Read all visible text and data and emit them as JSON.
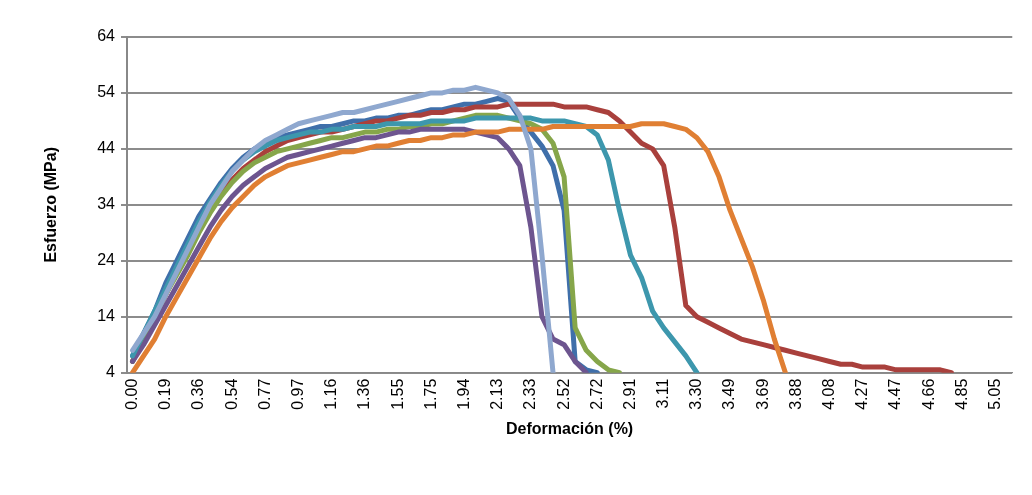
{
  "chart_data": {
    "type": "line",
    "xlabel": "Deformación (%)",
    "ylabel": "Esfuerzo (MPa)",
    "categories": [
      "0.00",
      null,
      null,
      "0.19",
      null,
      null,
      "0.36",
      null,
      null,
      "0.54",
      null,
      null,
      "0.77",
      null,
      null,
      "0.97",
      null,
      null,
      "1.16",
      null,
      null,
      "1.36",
      null,
      null,
      "1.55",
      null,
      null,
      "1.75",
      null,
      null,
      "1.94",
      null,
      null,
      "2.13",
      null,
      null,
      "2.33",
      null,
      null,
      "2.52",
      null,
      null,
      "2.72",
      null,
      null,
      "2.91",
      null,
      null,
      "3.11",
      null,
      null,
      "3.30",
      null,
      null,
      "3.49",
      null,
      null,
      "3.69",
      null,
      null,
      "3.88",
      null,
      null,
      "4.08",
      null,
      null,
      "4.27",
      null,
      null,
      "4.47",
      null,
      null,
      "4.66",
      null,
      null,
      "4.85",
      null,
      null,
      "5.05",
      null
    ],
    "ylim": [
      4,
      64
    ],
    "yticks": [
      4,
      14,
      24,
      34,
      44,
      54,
      64
    ],
    "grid": "y",
    "legend": false,
    "marker": "none",
    "line_style": "solid",
    "series": [
      {
        "color": "#3f6faa",
        "values": [
          7,
          11,
          15,
          20,
          24,
          28,
          32,
          35,
          38,
          40.5,
          42.5,
          44,
          45,
          46,
          46.5,
          47,
          47.5,
          48,
          48,
          48.5,
          49,
          49,
          49.5,
          49.5,
          50,
          50,
          50.5,
          51,
          51,
          51.5,
          52,
          52,
          52.5,
          53,
          52.5,
          49.5,
          47,
          44.5,
          41,
          33,
          6,
          4.5,
          4,
          null,
          null,
          null,
          null,
          null,
          null,
          null,
          null,
          null,
          null,
          null,
          null,
          null,
          null,
          null,
          null,
          null,
          null,
          null,
          null,
          null,
          null,
          null,
          null,
          null,
          null,
          null,
          null,
          null,
          null,
          null,
          null,
          null,
          null,
          null,
          null,
          null
        ]
      },
      {
        "color": "#a9403c",
        "values": [
          6,
          10,
          14,
          18,
          22,
          26,
          29.5,
          33,
          36,
          38.5,
          40.5,
          42,
          43.5,
          44.5,
          45.5,
          46,
          46.5,
          47,
          47,
          47.5,
          48,
          48.5,
          49,
          49,
          49.5,
          50,
          50,
          50.5,
          50.5,
          51,
          51,
          51.5,
          51.5,
          51.5,
          52,
          52,
          52,
          52,
          52,
          51.5,
          51.5,
          51.5,
          51,
          50.5,
          49,
          47,
          45,
          44,
          41,
          30,
          16,
          14,
          13,
          12,
          11,
          10,
          9.5,
          9,
          8.5,
          8,
          7.5,
          7,
          6.5,
          6,
          5.5,
          5.5,
          5,
          5,
          5,
          4.5,
          4.5,
          4.5,
          4.5,
          4.5,
          4,
          null,
          null,
          null,
          null,
          null
        ]
      },
      {
        "color": "#86a64a",
        "values": [
          6,
          10,
          14,
          18,
          21.5,
          25,
          29,
          32.5,
          35.5,
          38,
          40,
          41.5,
          42.5,
          43.5,
          44,
          44.5,
          45,
          45.5,
          46,
          46,
          46.5,
          47,
          47,
          47.5,
          47.5,
          48,
          48,
          48.5,
          48.5,
          49,
          49.5,
          50,
          50,
          50,
          49.5,
          49,
          48.5,
          47.5,
          45,
          39,
          12,
          8,
          6,
          4.5,
          4,
          null,
          null,
          null,
          null,
          null,
          null,
          null,
          null,
          null,
          null,
          null,
          null,
          null,
          null,
          null,
          null,
          null,
          null,
          null,
          null,
          null,
          null,
          null,
          null,
          null,
          null,
          null,
          null,
          null,
          null,
          null,
          null,
          null,
          null,
          null
        ]
      },
      {
        "color": "#6d558f",
        "values": [
          6,
          9,
          12.5,
          16,
          19.5,
          23,
          26.5,
          30,
          33,
          35.5,
          37.5,
          39,
          40.5,
          41.5,
          42.5,
          43,
          43.5,
          44,
          44.5,
          45,
          45.5,
          46,
          46,
          46.5,
          47,
          47,
          47.5,
          47.5,
          47.5,
          47.5,
          47.5,
          47,
          46.5,
          46,
          44,
          41,
          30,
          14,
          10,
          9,
          6,
          4,
          null,
          null,
          null,
          null,
          null,
          null,
          null,
          null,
          null,
          null,
          null,
          null,
          null,
          null,
          null,
          null,
          null,
          null,
          null,
          null,
          null,
          null,
          null,
          null,
          null,
          null,
          null,
          null,
          null,
          null,
          null,
          null,
          null,
          null,
          null,
          null,
          null,
          null
        ]
      },
      {
        "color": "#3d97ad",
        "values": [
          7,
          11,
          15,
          19,
          23,
          27,
          31,
          34.5,
          37.5,
          40,
          42,
          43.5,
          44.5,
          45.5,
          46,
          46.5,
          47,
          47,
          47.5,
          47.5,
          48,
          48,
          48,
          48.5,
          48.5,
          48.5,
          48.5,
          49,
          49,
          49,
          49,
          49.5,
          49.5,
          49.5,
          49.5,
          49.5,
          49.5,
          49,
          49,
          49,
          48.5,
          48,
          46.5,
          42,
          33,
          25,
          21,
          15,
          12,
          9.5,
          7,
          4,
          null,
          null,
          null,
          null,
          null,
          null,
          null,
          null,
          null,
          null,
          null,
          null,
          null,
          null,
          null,
          null,
          null,
          null,
          null,
          null,
          null,
          null,
          null,
          null,
          null,
          null,
          null,
          null
        ]
      },
      {
        "color": "#e07f33",
        "values": [
          4,
          7,
          10,
          14,
          17.5,
          21,
          24.5,
          28,
          31,
          33.5,
          35.5,
          37.5,
          39,
          40,
          41,
          41.5,
          42,
          42.5,
          43,
          43.5,
          43.5,
          44,
          44.5,
          44.5,
          45,
          45.5,
          45.5,
          46,
          46,
          46.5,
          46.5,
          47,
          47,
          47,
          47.5,
          47.5,
          47.5,
          47.5,
          48,
          48,
          48,
          48,
          48,
          48,
          48,
          48,
          48.5,
          48.5,
          48.5,
          48,
          47.5,
          46,
          43.5,
          39,
          33,
          28,
          23,
          17,
          10,
          4,
          null,
          null,
          null,
          null,
          null,
          null,
          null,
          null,
          null,
          null,
          null,
          null,
          null,
          null,
          null,
          null,
          null,
          null,
          null,
          null
        ]
      },
      {
        "color": "#8fa8cf",
        "values": [
          8,
          11,
          14,
          18,
          22,
          26,
          30,
          34,
          37,
          40,
          42,
          44,
          45.5,
          46.5,
          47.5,
          48.5,
          49,
          49.5,
          50,
          50.5,
          50.5,
          51,
          51.5,
          52,
          52.5,
          53,
          53.5,
          54,
          54,
          54.5,
          54.5,
          55,
          54.5,
          54,
          53,
          50,
          44,
          25,
          4,
          null,
          null,
          null,
          null,
          null,
          null,
          null,
          null,
          null,
          null,
          null,
          null,
          null,
          null,
          null,
          null,
          null,
          null,
          null,
          null,
          null,
          null,
          null,
          null,
          null,
          null,
          null,
          null,
          null,
          null,
          null,
          null,
          null,
          null,
          null,
          null,
          null,
          null,
          null,
          null,
          null
        ]
      }
    ]
  }
}
